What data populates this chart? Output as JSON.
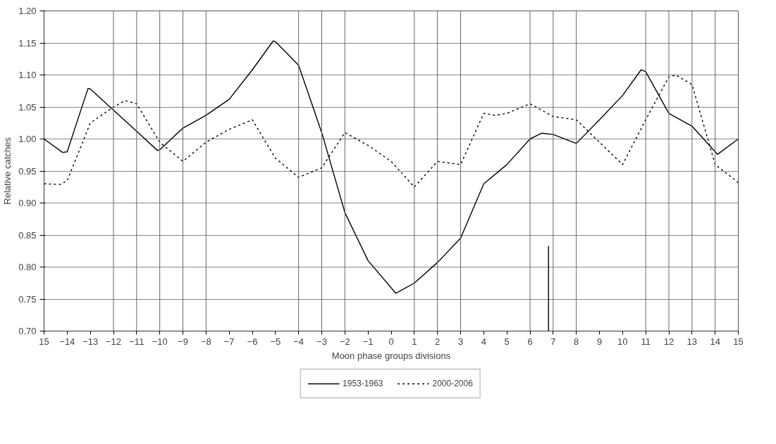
{
  "chart_data": {
    "type": "line",
    "xlabel": "Moon phase groups divisions",
    "ylabel": "Relative catches",
    "xlim": [
      -15,
      15
    ],
    "ylim": [
      0.7,
      1.2
    ],
    "xticks": [
      {
        "value": -15,
        "label": "15"
      },
      -14,
      -13,
      -12,
      -11,
      -10,
      -9,
      -8,
      -7,
      -6,
      -5,
      -4,
      -3,
      -2,
      -1,
      0,
      1,
      2,
      3,
      4,
      5,
      6,
      7,
      8,
      9,
      10,
      11,
      12,
      13,
      14,
      15
    ],
    "yticks": [
      {
        "value": 0.7,
        "label": "0.70"
      },
      {
        "value": 0.75,
        "label": "0.75"
      },
      {
        "value": 0.8,
        "label": "0.80"
      },
      {
        "value": 0.85,
        "label": "0.85"
      },
      {
        "value": 0.9,
        "label": "0.90"
      },
      {
        "value": 0.95,
        "label": "0.95"
      },
      {
        "value": 1.0,
        "label": "1.00"
      },
      {
        "value": 1.05,
        "label": "1.05"
      },
      {
        "value": 1.1,
        "label": "1.10"
      },
      {
        "value": 1.15,
        "label": "1.15"
      },
      {
        "value": 1.2,
        "label": "1.20"
      }
    ],
    "grid": "y",
    "legend": "bottom",
    "marker": "none",
    "series": [
      {
        "name": "1953-1963",
        "color": "#000000",
        "line_style": "solid",
        "x": [
          -15,
          -14.2,
          -14,
          -13.1,
          -13,
          -12,
          -11,
          -10.1,
          -10,
          -9,
          -8,
          -7,
          -6,
          -5.1,
          -5,
          -4,
          -3,
          -2,
          -1,
          0.2,
          1,
          2,
          3,
          4,
          5,
          6,
          6.5,
          7,
          8,
          9,
          10,
          10.8,
          11,
          12,
          13,
          14.1,
          15
        ],
        "values": [
          1.0,
          0.979,
          0.98,
          1.079,
          1.078,
          1.045,
          1.012,
          0.982,
          0.983,
          1.017,
          1.037,
          1.062,
          1.108,
          1.153,
          1.152,
          1.115,
          1.01,
          0.885,
          0.81,
          0.759,
          0.775,
          0.807,
          0.845,
          0.93,
          0.96,
          1.0,
          1.009,
          1.007,
          0.993,
          1.03,
          1.068,
          1.108,
          1.105,
          1.04,
          1.02,
          0.976,
          1.0
        ]
      },
      {
        "name": "2000-2006",
        "color": "#000000",
        "line_style": "dotted",
        "x": [
          -15,
          -14.3,
          -14,
          -13,
          -12,
          -11.5,
          -11,
          -10,
          -9,
          -8,
          -7,
          -6,
          -5,
          -4,
          -3,
          -2,
          -1,
          0,
          1,
          2,
          3,
          4,
          4.5,
          5,
          6,
          7,
          8,
          9,
          10,
          11,
          12,
          12.3,
          13,
          14,
          15
        ],
        "values": [
          0.93,
          0.929,
          0.935,
          1.025,
          1.05,
          1.06,
          1.055,
          0.995,
          0.965,
          0.995,
          1.015,
          1.03,
          0.97,
          0.94,
          0.955,
          1.01,
          0.99,
          0.965,
          0.925,
          0.965,
          0.96,
          1.04,
          1.037,
          1.04,
          1.055,
          1.035,
          1.03,
          0.995,
          0.96,
          1.03,
          1.097,
          1.1,
          1.085,
          0.96,
          0.932
        ]
      },
      {
        "color": "#000000",
        "line_style": "solid",
        "x": [
          6.8,
          6.8
        ],
        "values": [
          0.7,
          0.833
        ]
      }
    ],
    "ref_lines": [
      {
        "axis": "x",
        "value": -12
      },
      {
        "axis": "x",
        "value": -11
      },
      {
        "axis": "x",
        "value": -10
      },
      {
        "axis": "x",
        "value": -9
      },
      {
        "axis": "x",
        "value": -8
      },
      {
        "axis": "x",
        "value": -4
      },
      {
        "axis": "x",
        "value": -3
      },
      {
        "axis": "x",
        "value": -2
      },
      {
        "axis": "x",
        "value": 1
      },
      {
        "axis": "x",
        "value": 2
      },
      {
        "axis": "x",
        "value": 3
      },
      {
        "axis": "x",
        "value": 6
      },
      {
        "axis": "x",
        "value": 7
      },
      {
        "axis": "x",
        "value": 8
      },
      {
        "axis": "x",
        "value": 11
      },
      {
        "axis": "x",
        "value": 12
      },
      {
        "axis": "x",
        "value": 13
      },
      {
        "axis": "x",
        "value": 14
      }
    ]
  }
}
